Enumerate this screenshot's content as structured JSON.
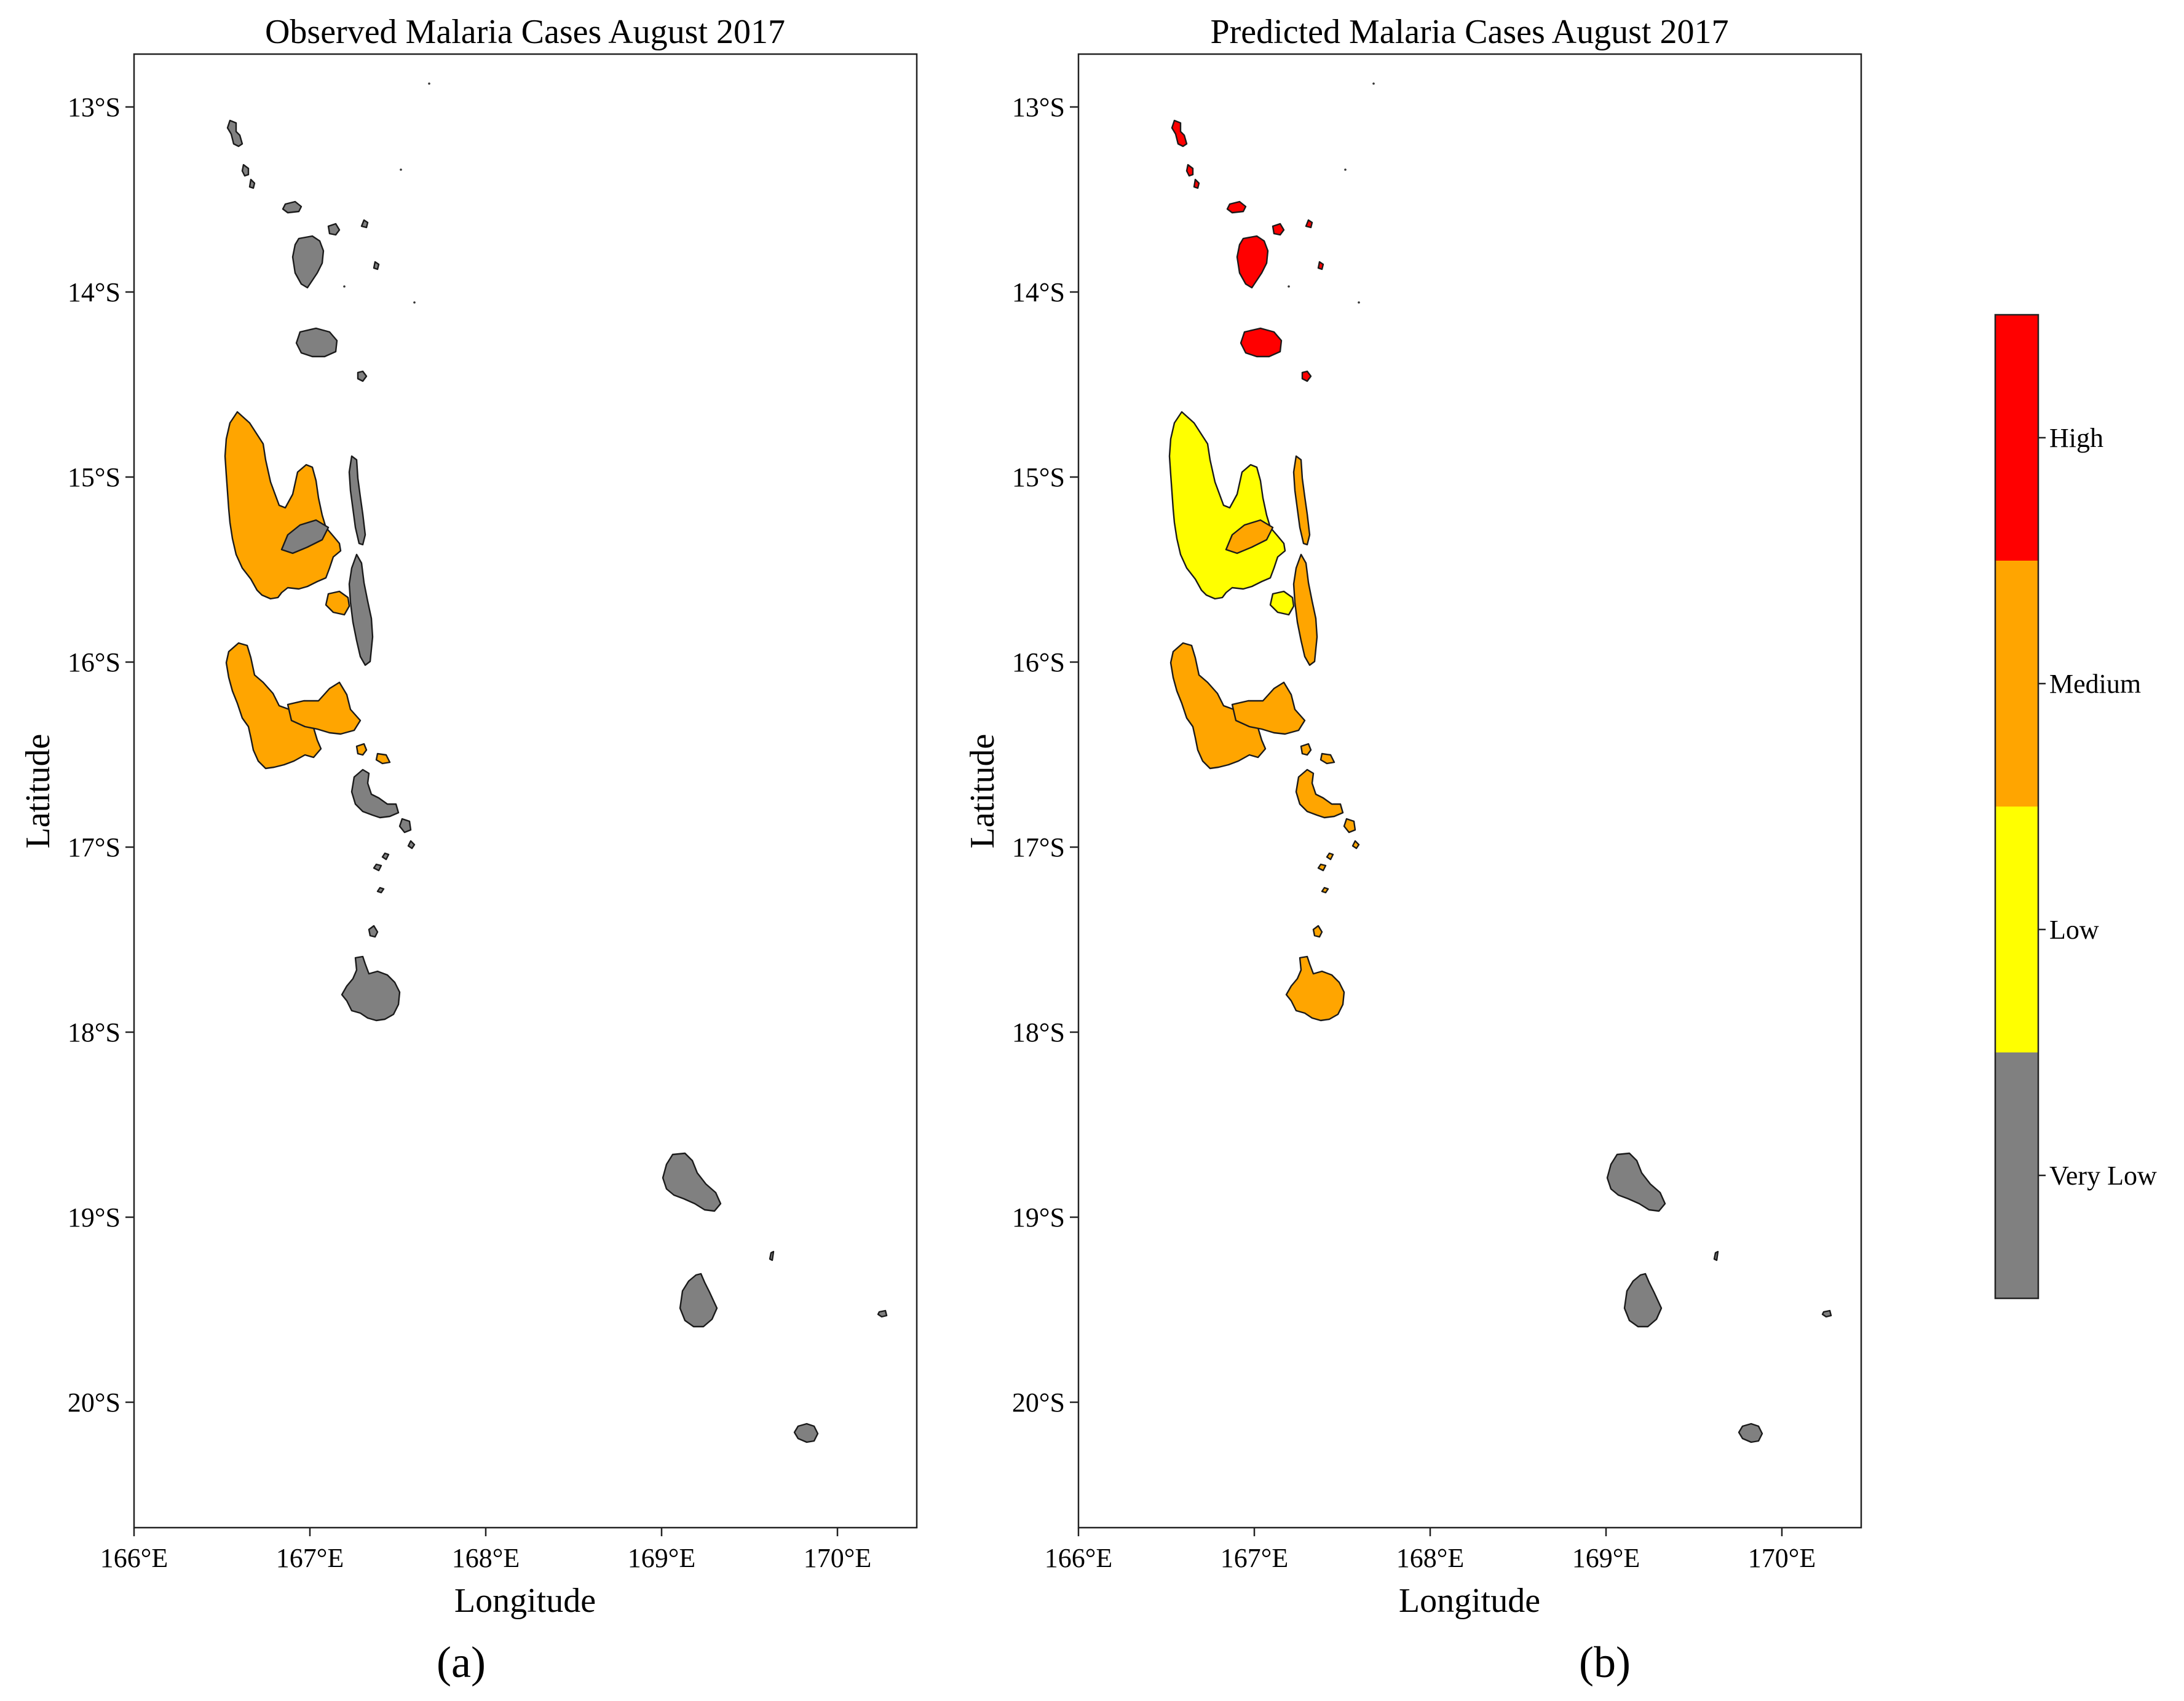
{
  "colors": {
    "very_low": "#808080",
    "low": "#ffff00",
    "medium": "#ffa500",
    "high": "#ff0000"
  },
  "panels": [
    {
      "id": "a",
      "title": "Observed Malaria Cases August 2017",
      "xlabel": "Longitude",
      "ylabel": "Latitude",
      "sublabel": "(a)",
      "x_ticks": [
        "166°E",
        "167°E",
        "168°E",
        "169°E",
        "170°E"
      ],
      "y_ticks": [
        "13°S",
        "14°S",
        "15°S",
        "16°S",
        "17°S",
        "18°S",
        "19°S",
        "20°S"
      ],
      "categories": {
        "torres_north": "very_low",
        "torres_south": "very_low",
        "vanua_lava": "very_low",
        "mota_lava": "very_low",
        "small_banks": "very_low",
        "gaua": "very_low",
        "merelava": "very_low",
        "espiritu_santo": "medium",
        "aore": "medium",
        "maewo": "very_low",
        "ambae": "very_low",
        "pentecost": "very_low",
        "malakula": "medium",
        "ambrym": "medium",
        "paama": "medium",
        "epi": "very_low",
        "shepherds": "very_low",
        "efate": "very_low",
        "erromango": "very_low",
        "tanna": "very_low",
        "aniwa": "very_low",
        "aneityum": "very_low",
        "futuna": "very_low"
      }
    },
    {
      "id": "b",
      "title": "Predicted Malaria Cases August 2017",
      "xlabel": "Longitude",
      "ylabel": "Latitude",
      "sublabel": "(b)",
      "x_ticks": [
        "166°E",
        "167°E",
        "168°E",
        "169°E",
        "170°E"
      ],
      "y_ticks": [
        "13°S",
        "14°S",
        "15°S",
        "16°S",
        "17°S",
        "18°S",
        "19°S",
        "20°S"
      ],
      "categories": {
        "torres_north": "high",
        "torres_south": "high",
        "vanua_lava": "high",
        "mota_lava": "high",
        "small_banks": "high",
        "gaua": "high",
        "merelava": "high",
        "espiritu_santo": "low",
        "aore": "low",
        "maewo": "medium",
        "ambae": "medium",
        "pentecost": "medium",
        "malakula": "medium",
        "ambrym": "medium",
        "paama": "medium",
        "epi": "medium",
        "shepherds": "medium",
        "efate": "medium",
        "erromango": "very_low",
        "tanna": "very_low",
        "aniwa": "very_low",
        "aneityum": "very_low",
        "futuna": "very_low"
      }
    }
  ],
  "legend": {
    "levels": [
      {
        "key": "high",
        "label": "High"
      },
      {
        "key": "medium",
        "label": "Medium"
      },
      {
        "key": "low",
        "label": "Low"
      },
      {
        "key": "very_low",
        "label": "Very Low"
      }
    ]
  }
}
